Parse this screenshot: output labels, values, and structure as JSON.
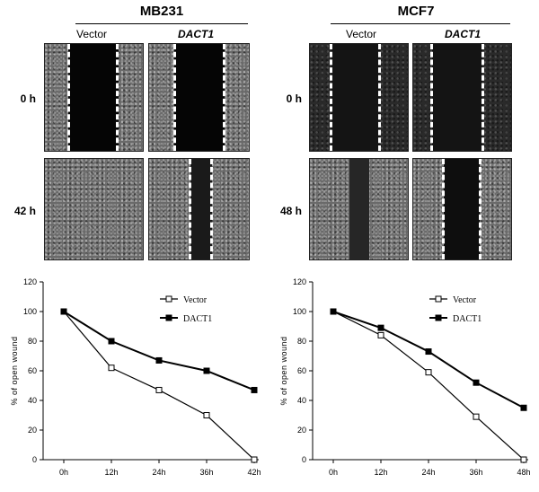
{
  "panels": [
    {
      "title": "MB231",
      "conditions": [
        "Vector",
        "DACT1"
      ],
      "timepoints": [
        "0 h",
        "42 h"
      ]
    },
    {
      "title": "MCF7",
      "conditions": [
        "Vector",
        "DACT1"
      ],
      "timepoints": [
        "0 h",
        "48 h"
      ]
    }
  ],
  "chart_data": [
    {
      "type": "line",
      "title": "",
      "xlabel": "",
      "ylabel": "% of open wound",
      "categories": [
        "0h",
        "12h",
        "24h",
        "36h",
        "42h"
      ],
      "ylim": [
        0,
        120
      ],
      "yticks": [
        "0",
        "20",
        "40",
        "60",
        "80",
        "100",
        "120"
      ],
      "legend_position": "top-right",
      "series": [
        {
          "name": "Vector",
          "marker": "open-square",
          "values": [
            100,
            62,
            47,
            30,
            0
          ]
        },
        {
          "name": "DACT1",
          "marker": "filled-square",
          "values": [
            100,
            80,
            67,
            60,
            47
          ]
        }
      ]
    },
    {
      "type": "line",
      "title": "",
      "xlabel": "",
      "ylabel": "% of open wound",
      "categories": [
        "0h",
        "12h",
        "24h",
        "36h",
        "48h"
      ],
      "ylim": [
        0,
        120
      ],
      "yticks": [
        "0",
        "20",
        "40",
        "60",
        "80",
        "100",
        "120"
      ],
      "legend_position": "top-right",
      "series": [
        {
          "name": "Vector",
          "marker": "open-square",
          "values": [
            100,
            84,
            59,
            29,
            0
          ]
        },
        {
          "name": "DACT1",
          "marker": "filled-square",
          "values": [
            100,
            89,
            73,
            52,
            35
          ]
        }
      ]
    }
  ]
}
